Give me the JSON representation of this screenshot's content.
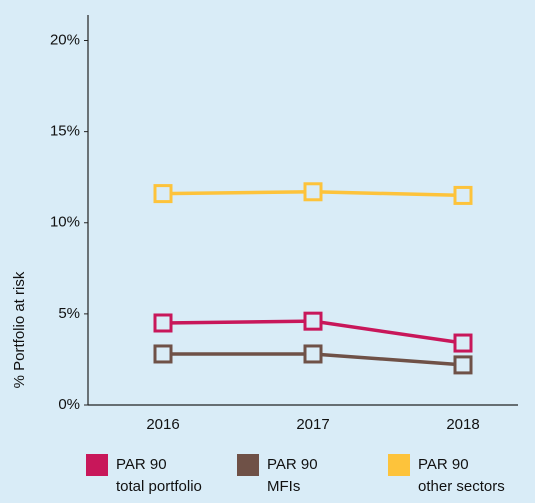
{
  "chart_data": {
    "type": "line",
    "ylabel": "% Portfolio at risk",
    "categories": [
      "2016",
      "2017",
      "2018"
    ],
    "series": [
      {
        "name": "PAR 90\ntotal portfolio",
        "color": "#c8175a",
        "values": [
          4.5,
          4.6,
          3.4
        ]
      },
      {
        "name": "PAR 90\nMFIs",
        "color": "#6f5147",
        "values": [
          2.8,
          2.8,
          2.2
        ]
      },
      {
        "name": "PAR 90\nother sectors",
        "color": "#fdc33b",
        "values": [
          11.6,
          11.7,
          11.5
        ]
      }
    ],
    "ylim": [
      0,
      21.4
    ],
    "yticks": [
      {
        "value": 0,
        "label": "0%"
      },
      {
        "value": 5,
        "label": "5%"
      },
      {
        "value": 10,
        "label": "10%"
      },
      {
        "value": 15,
        "label": "15%"
      },
      {
        "value": 20,
        "label": "20%"
      }
    ],
    "grid": false,
    "legend": "bottom"
  }
}
